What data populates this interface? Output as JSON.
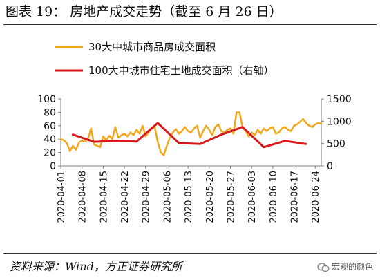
{
  "header": {
    "title": "图表 19：  房地产成交走势（截至 6 月 26 日）"
  },
  "footer": {
    "source": "资料来源：Wind，方正证券研究所",
    "watermark": "宏观的颜色"
  },
  "icons": {
    "watermark": "wechat-icon"
  },
  "chart_data": {
    "type": "line",
    "x_ticks": [
      "2020-04-01",
      "2020-04-08",
      "2020-04-15",
      "2020-04-22",
      "2020-04-29",
      "2020-05-06",
      "2020-05-13",
      "2020-05-20",
      "2020-05-27",
      "2020-06-03",
      "2020-06-10",
      "2020-06-17",
      "2020-06-24"
    ],
    "x_range": [
      "2020-04-01",
      "2020-06-26"
    ],
    "y_left": {
      "ticks": [
        0,
        20,
        40,
        60,
        80,
        100
      ],
      "range": [
        0,
        100
      ]
    },
    "y_right": {
      "ticks": [
        0,
        500,
        1000,
        1500
      ],
      "range": [
        0,
        1500
      ]
    },
    "grid": false,
    "legend_placement": "top",
    "series": [
      {
        "name": "30大中城市商品房成交面积",
        "axis": "left",
        "color": "#F2A71B",
        "x": [
          "2020-04-01",
          "2020-04-02",
          "2020-04-03",
          "2020-04-04",
          "2020-04-05",
          "2020-04-06",
          "2020-04-07",
          "2020-04-08",
          "2020-04-09",
          "2020-04-10",
          "2020-04-11",
          "2020-04-12",
          "2020-04-13",
          "2020-04-14",
          "2020-04-15",
          "2020-04-16",
          "2020-04-17",
          "2020-04-18",
          "2020-04-19",
          "2020-04-20",
          "2020-04-21",
          "2020-04-22",
          "2020-04-23",
          "2020-04-24",
          "2020-04-25",
          "2020-04-26",
          "2020-04-27",
          "2020-04-28",
          "2020-04-29",
          "2020-04-30",
          "2020-05-01",
          "2020-05-02",
          "2020-05-03",
          "2020-05-04",
          "2020-05-05",
          "2020-05-06",
          "2020-05-07",
          "2020-05-08",
          "2020-05-09",
          "2020-05-10",
          "2020-05-11",
          "2020-05-12",
          "2020-05-13",
          "2020-05-14",
          "2020-05-15",
          "2020-05-16",
          "2020-05-17",
          "2020-05-18",
          "2020-05-19",
          "2020-05-20",
          "2020-05-21",
          "2020-05-22",
          "2020-05-23",
          "2020-05-24",
          "2020-05-25",
          "2020-05-26",
          "2020-05-27",
          "2020-05-28",
          "2020-05-29",
          "2020-05-30",
          "2020-05-31",
          "2020-06-01",
          "2020-06-02",
          "2020-06-03",
          "2020-06-04",
          "2020-06-05",
          "2020-06-06",
          "2020-06-07",
          "2020-06-08",
          "2020-06-09",
          "2020-06-10",
          "2020-06-11",
          "2020-06-12",
          "2020-06-13",
          "2020-06-14",
          "2020-06-15",
          "2020-06-16",
          "2020-06-17",
          "2020-06-18",
          "2020-06-19",
          "2020-06-20",
          "2020-06-21",
          "2020-06-22",
          "2020-06-23",
          "2020-06-24",
          "2020-06-25",
          "2020-06-26"
        ],
        "values": [
          40,
          38,
          34,
          22,
          30,
          24,
          35,
          38,
          36,
          40,
          56,
          32,
          30,
          28,
          44,
          38,
          45,
          40,
          58,
          42,
          46,
          48,
          44,
          50,
          46,
          54,
          48,
          60,
          44,
          50,
          56,
          58,
          36,
          20,
          16,
          30,
          42,
          50,
          55,
          48,
          52,
          58,
          52,
          50,
          56,
          60,
          42,
          52,
          60,
          54,
          46,
          58,
          62,
          52,
          50,
          54,
          56,
          48,
          80,
          80,
          58,
          52,
          44,
          50,
          46,
          54,
          48,
          56,
          52,
          56,
          58,
          48,
          50,
          56,
          58,
          54,
          52,
          60,
          62,
          66,
          70,
          64,
          60,
          58,
          62,
          64,
          63
        ]
      },
      {
        "name": "100大中城市住宅土地成交面积（右轴）",
        "axis": "right",
        "color": "#D7191C",
        "x": [
          "2020-04-05",
          "2020-04-12",
          "2020-04-19",
          "2020-04-26",
          "2020-05-03",
          "2020-05-10",
          "2020-05-17",
          "2020-05-24",
          "2020-05-31",
          "2020-06-07",
          "2020-06-14",
          "2020-06-21"
        ],
        "values": [
          700,
          540,
          560,
          545,
          960,
          510,
          490,
          700,
          870,
          420,
          560,
          490
        ]
      }
    ]
  }
}
